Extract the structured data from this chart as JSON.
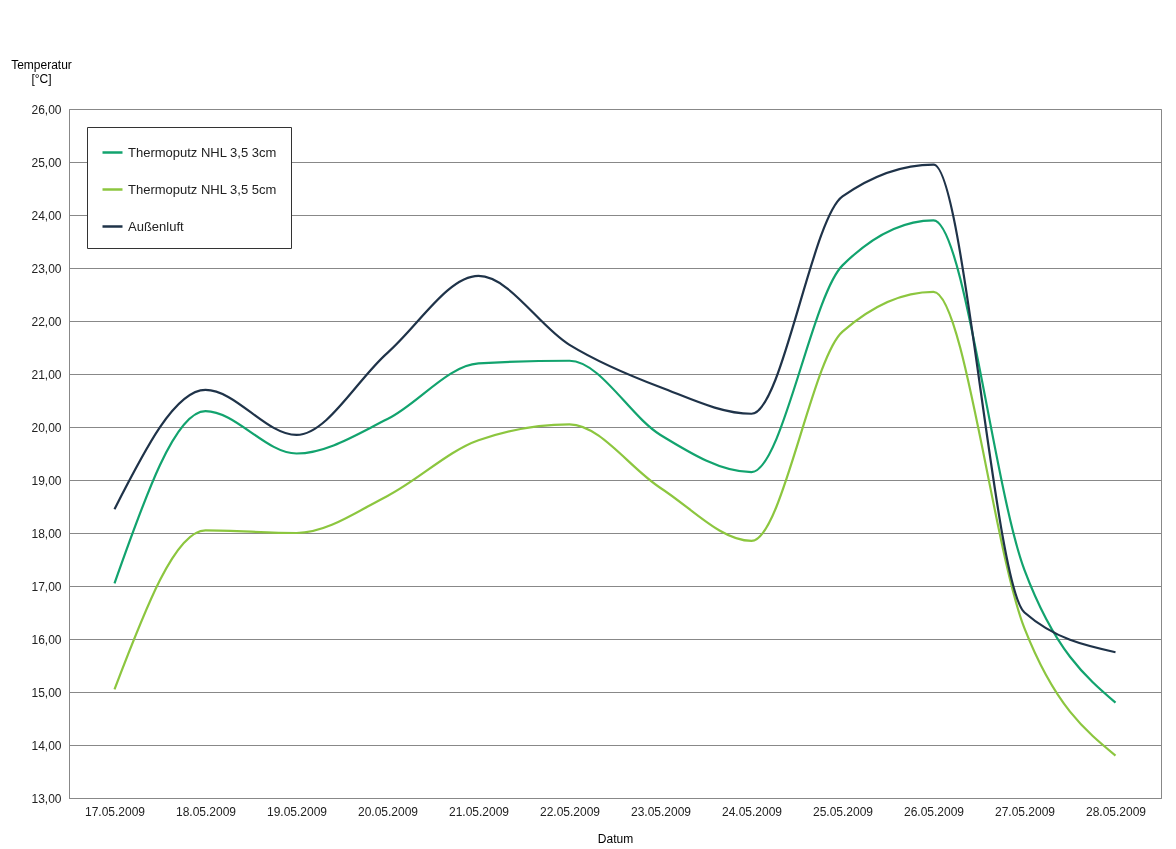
{
  "chart_data": {
    "type": "line",
    "ylabel": "Temperatur [°C]",
    "xlabel": "Datum",
    "categories": [
      "17.05.2009",
      "18.05.2009",
      "19.05.2009",
      "20.05.2009",
      "21.05.2009",
      "22.05.2009",
      "23.05.2009",
      "24.05.2009",
      "25.05.2009",
      "26.05.2009",
      "27.05.2009",
      "28.05.2009"
    ],
    "series": [
      {
        "name": "Thermoputz NHL 3,5 3cm",
        "color": "#12a36e",
        "values": [
          17.05,
          20.3,
          19.5,
          20.15,
          21.2,
          21.25,
          19.85,
          19.15,
          23.05,
          23.9,
          17.3,
          14.8
        ]
      },
      {
        "name": "Thermoputz NHL 3,5 5cm",
        "color": "#8cc63f",
        "values": [
          15.05,
          18.05,
          18.0,
          18.7,
          19.75,
          20.05,
          18.85,
          17.85,
          21.8,
          22.55,
          16.2,
          13.8
        ]
      },
      {
        "name": "Außenluft",
        "color": "#1f3349",
        "values": [
          18.45,
          20.7,
          19.85,
          21.4,
          22.85,
          21.55,
          20.75,
          20.25,
          24.35,
          24.95,
          16.5,
          15.75
        ]
      }
    ],
    "ylim": [
      13,
      26
    ],
    "yticks": [
      {
        "value": 13,
        "label": "13,00"
      },
      {
        "value": 14,
        "label": "14,00"
      },
      {
        "value": 15,
        "label": "15,00"
      },
      {
        "value": 16,
        "label": "16,00"
      },
      {
        "value": 17,
        "label": "17,00"
      },
      {
        "value": 18,
        "label": "18,00"
      },
      {
        "value": 19,
        "label": "19,00"
      },
      {
        "value": 20,
        "label": "20,00"
      },
      {
        "value": 21,
        "label": "21,00"
      },
      {
        "value": 22,
        "label": "22,00"
      },
      {
        "value": 23,
        "label": "23,00"
      },
      {
        "value": 24,
        "label": "24,00"
      },
      {
        "value": 25,
        "label": "25,00"
      },
      {
        "value": 26,
        "label": "26,00"
      }
    ],
    "grid": "y",
    "legend": "top left",
    "marker": "none",
    "line_style": "solid"
  }
}
